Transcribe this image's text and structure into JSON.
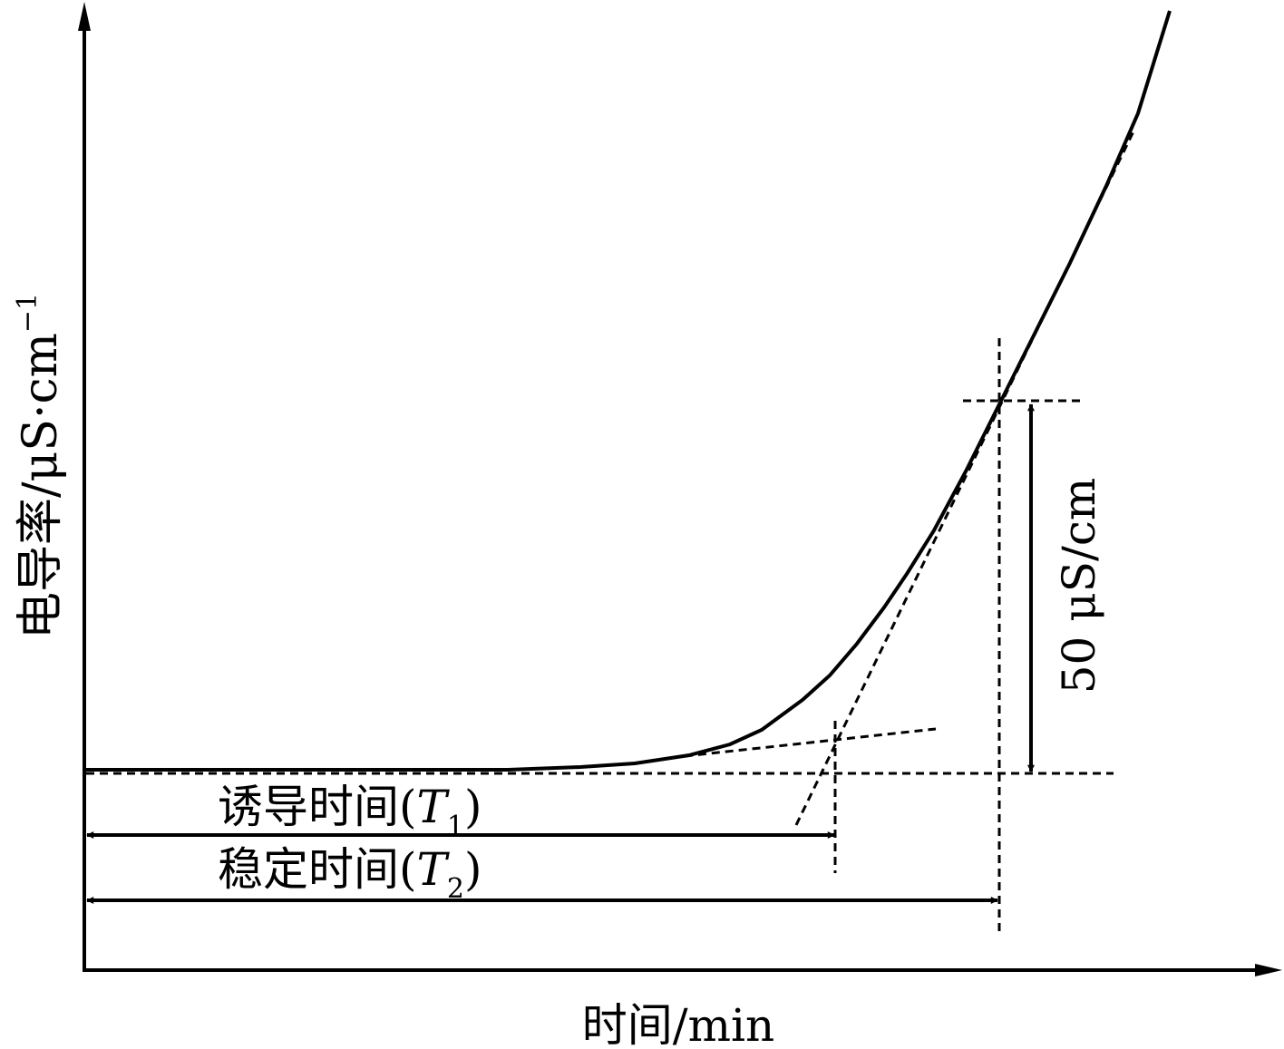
{
  "axes": {
    "y_label": "电导率/μS·cm",
    "y_label_exp": "−1",
    "x_label": "时间/min"
  },
  "annotations": {
    "t1_label": "诱导时间(",
    "t1_symbol": "T",
    "t1_sub": "1",
    "t1_close": ")",
    "t2_label": "稳定时间(",
    "t2_symbol": "T",
    "t2_sub": "2",
    "t2_close": ")",
    "delta_label": "50 μS/cm"
  },
  "colors": {
    "line": "#000000",
    "background": "#ffffff"
  }
}
